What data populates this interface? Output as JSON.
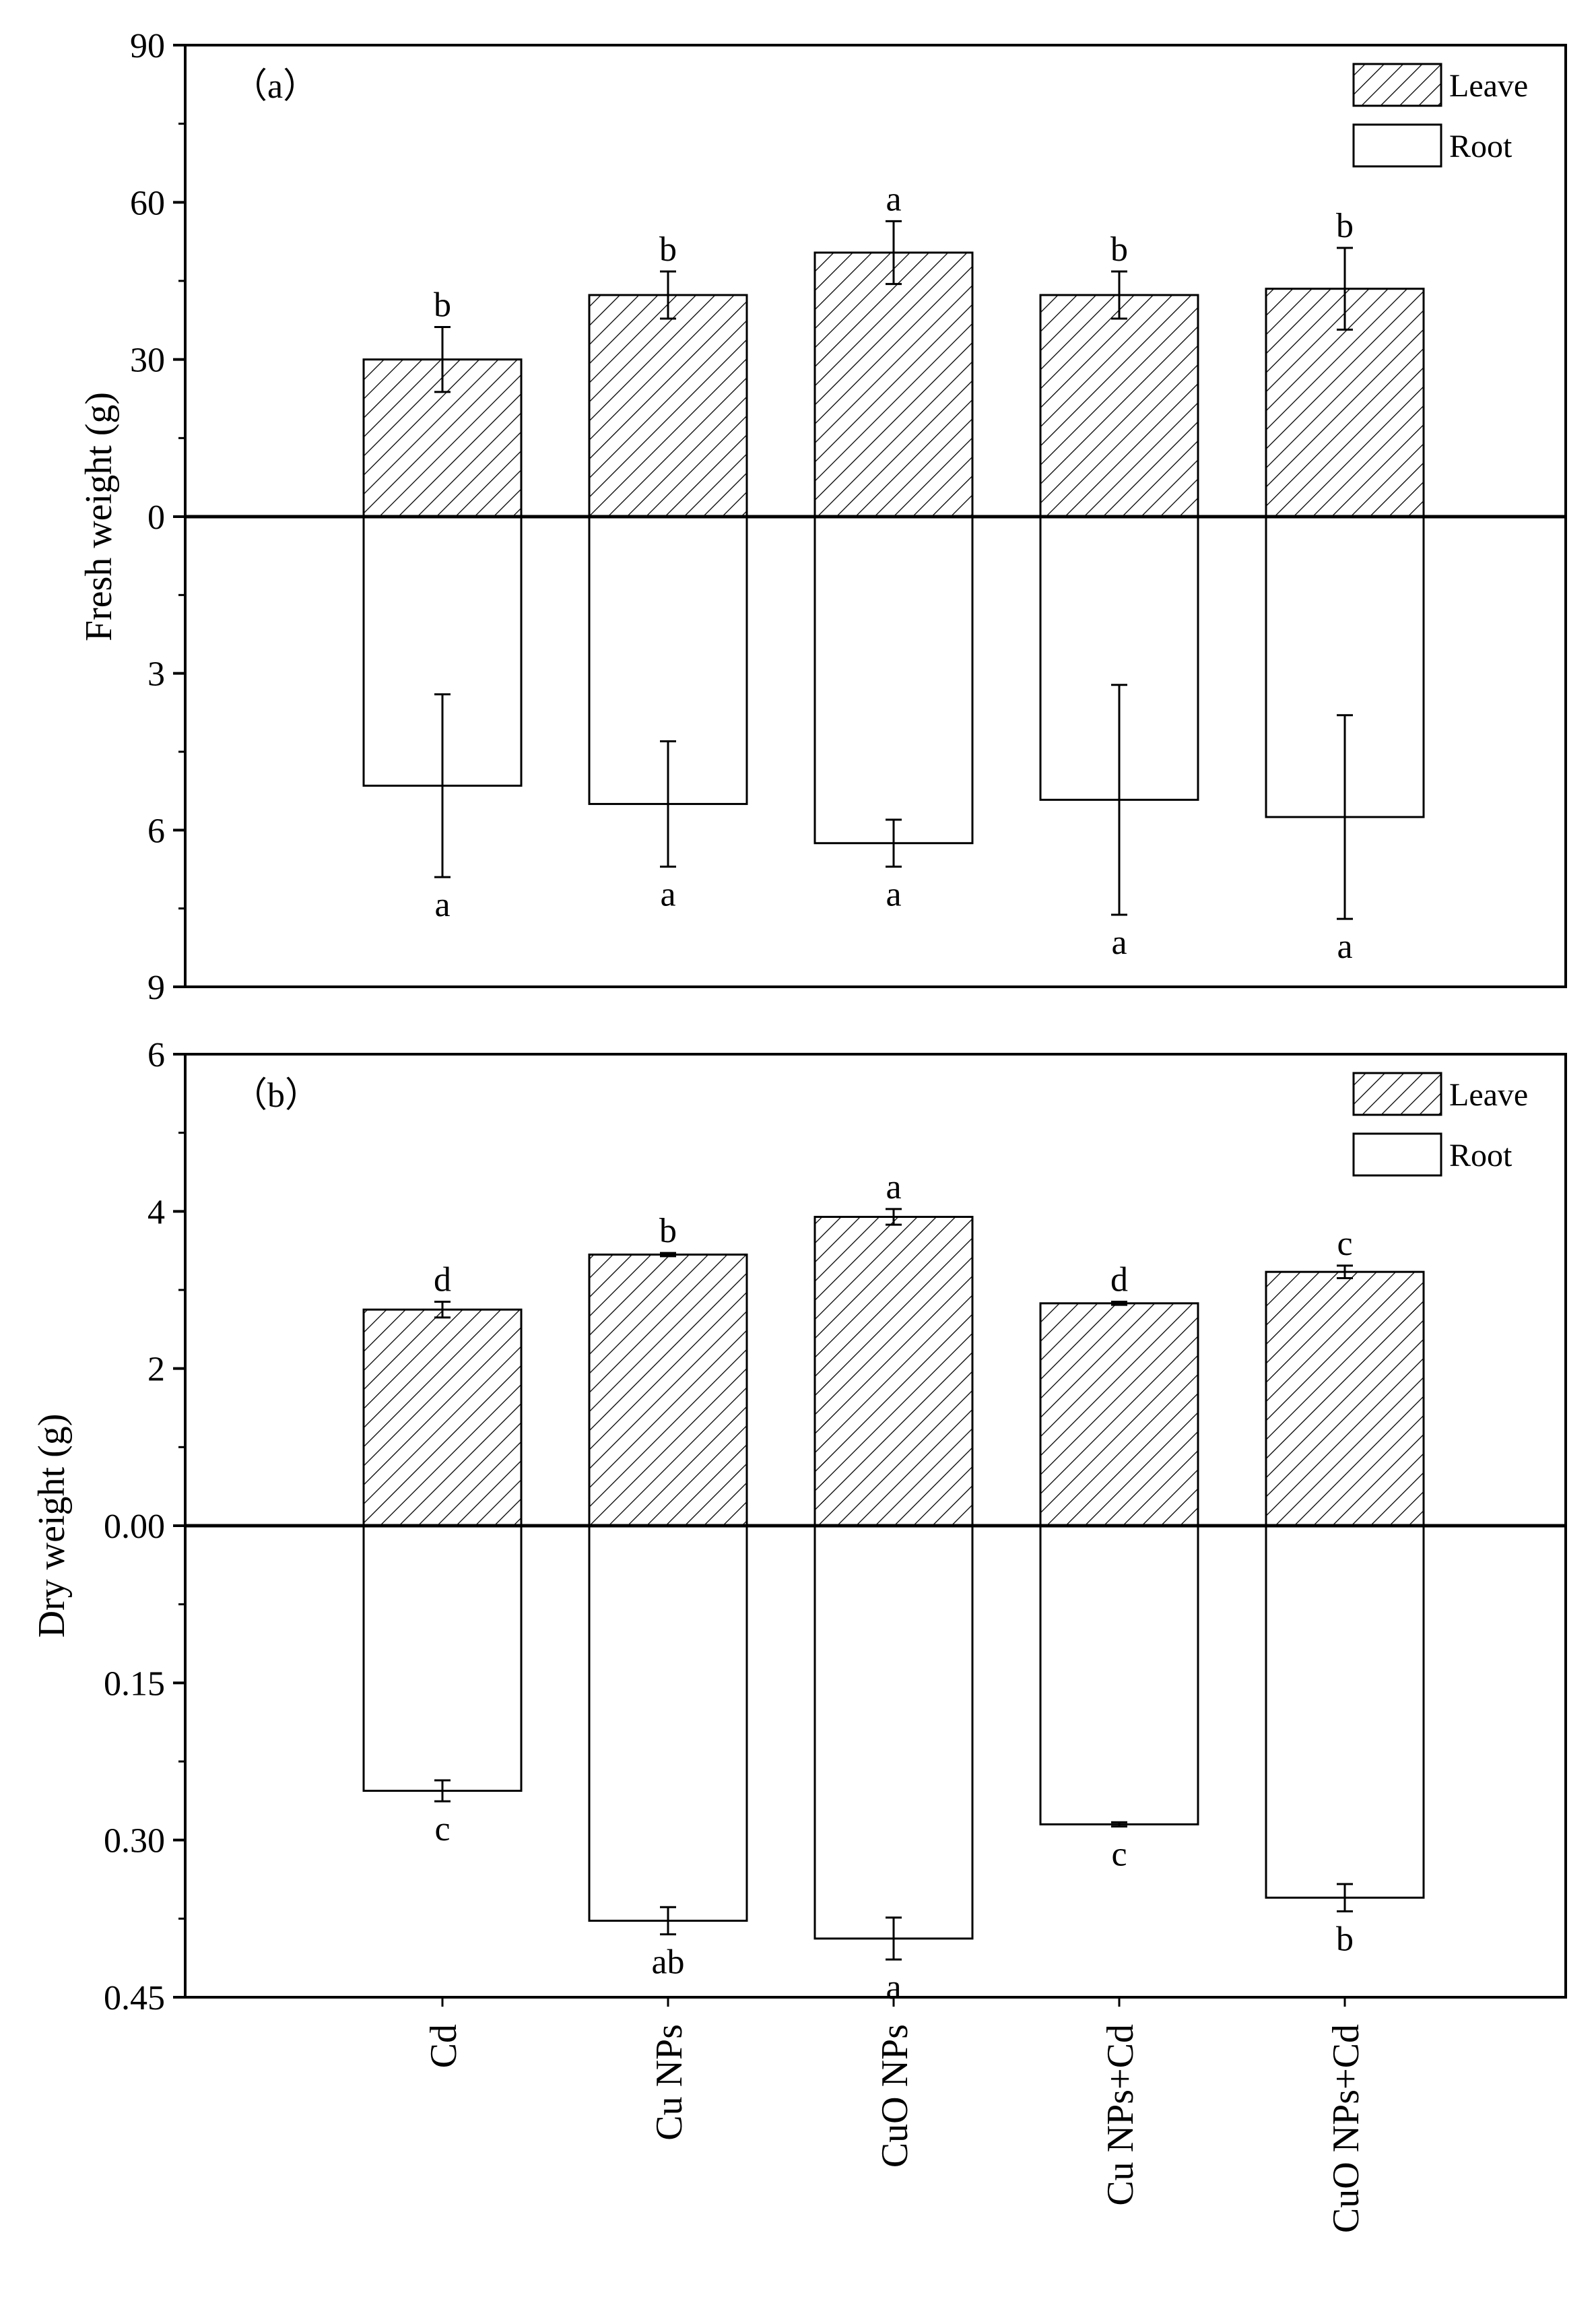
{
  "chart_data": [
    {
      "type": "bar",
      "panel_label": "（a）",
      "ylabel": "Fresh weight (g)",
      "categories": [
        "Cd",
        "Cu NPs",
        "CuO NPs",
        "Cu NPs+Cd",
        "CuO NPs+Cd"
      ],
      "legend": [
        {
          "name": "Leave",
          "pattern": "hatched"
        },
        {
          "name": "Root",
          "pattern": "open"
        }
      ],
      "legend_position": "top-right",
      "upper": {
        "series": "Leave",
        "ylim": [
          0,
          90
        ],
        "ticks": [
          "0",
          "30",
          "60",
          "90"
        ],
        "values": [
          30,
          42.3,
          50.4,
          42.3,
          43.5
        ],
        "errors": [
          6.2,
          4.5,
          6.0,
          4.5,
          7.8
        ],
        "letters": [
          "b",
          "b",
          "a",
          "b",
          "b"
        ]
      },
      "lower": {
        "series": "Root",
        "ylim": [
          0,
          9
        ],
        "ticks": [
          "0",
          "3",
          "6",
          "9"
        ],
        "values": [
          5.15,
          5.5,
          6.25,
          5.42,
          5.75
        ],
        "errors": [
          1.75,
          1.2,
          0.45,
          2.2,
          1.95
        ],
        "letters": [
          "a",
          "a",
          "a",
          "a",
          "a"
        ]
      }
    },
    {
      "type": "bar",
      "panel_label": "（b）",
      "ylabel": "Dry weight (g)",
      "categories": [
        "Cd",
        "Cu NPs",
        "CuO NPs",
        "Cu NPs+Cd",
        "CuO NPs+Cd"
      ],
      "legend": [
        {
          "name": "Leave",
          "pattern": "hatched"
        },
        {
          "name": "Root",
          "pattern": "open"
        }
      ],
      "legend_position": "top-right",
      "upper": {
        "series": "Leave",
        "ylim": [
          0,
          6
        ],
        "ticks": [
          "0.00",
          "2",
          "4",
          "6"
        ],
        "values": [
          2.75,
          3.45,
          3.93,
          2.83,
          3.23
        ],
        "errors": [
          0.1,
          0.02,
          0.1,
          0.02,
          0.08
        ],
        "letters": [
          "d",
          "b",
          "a",
          "d",
          "c"
        ]
      },
      "lower": {
        "series": "Root",
        "ylim": [
          0,
          0.45
        ],
        "ticks": [
          "0.00",
          "0.15",
          "0.30",
          "0.45"
        ],
        "values": [
          0.253,
          0.377,
          0.394,
          0.285,
          0.355
        ],
        "errors": [
          0.01,
          0.013,
          0.02,
          0.002,
          0.013
        ],
        "letters": [
          "c",
          "ab",
          "a",
          "c",
          "b"
        ]
      }
    }
  ]
}
